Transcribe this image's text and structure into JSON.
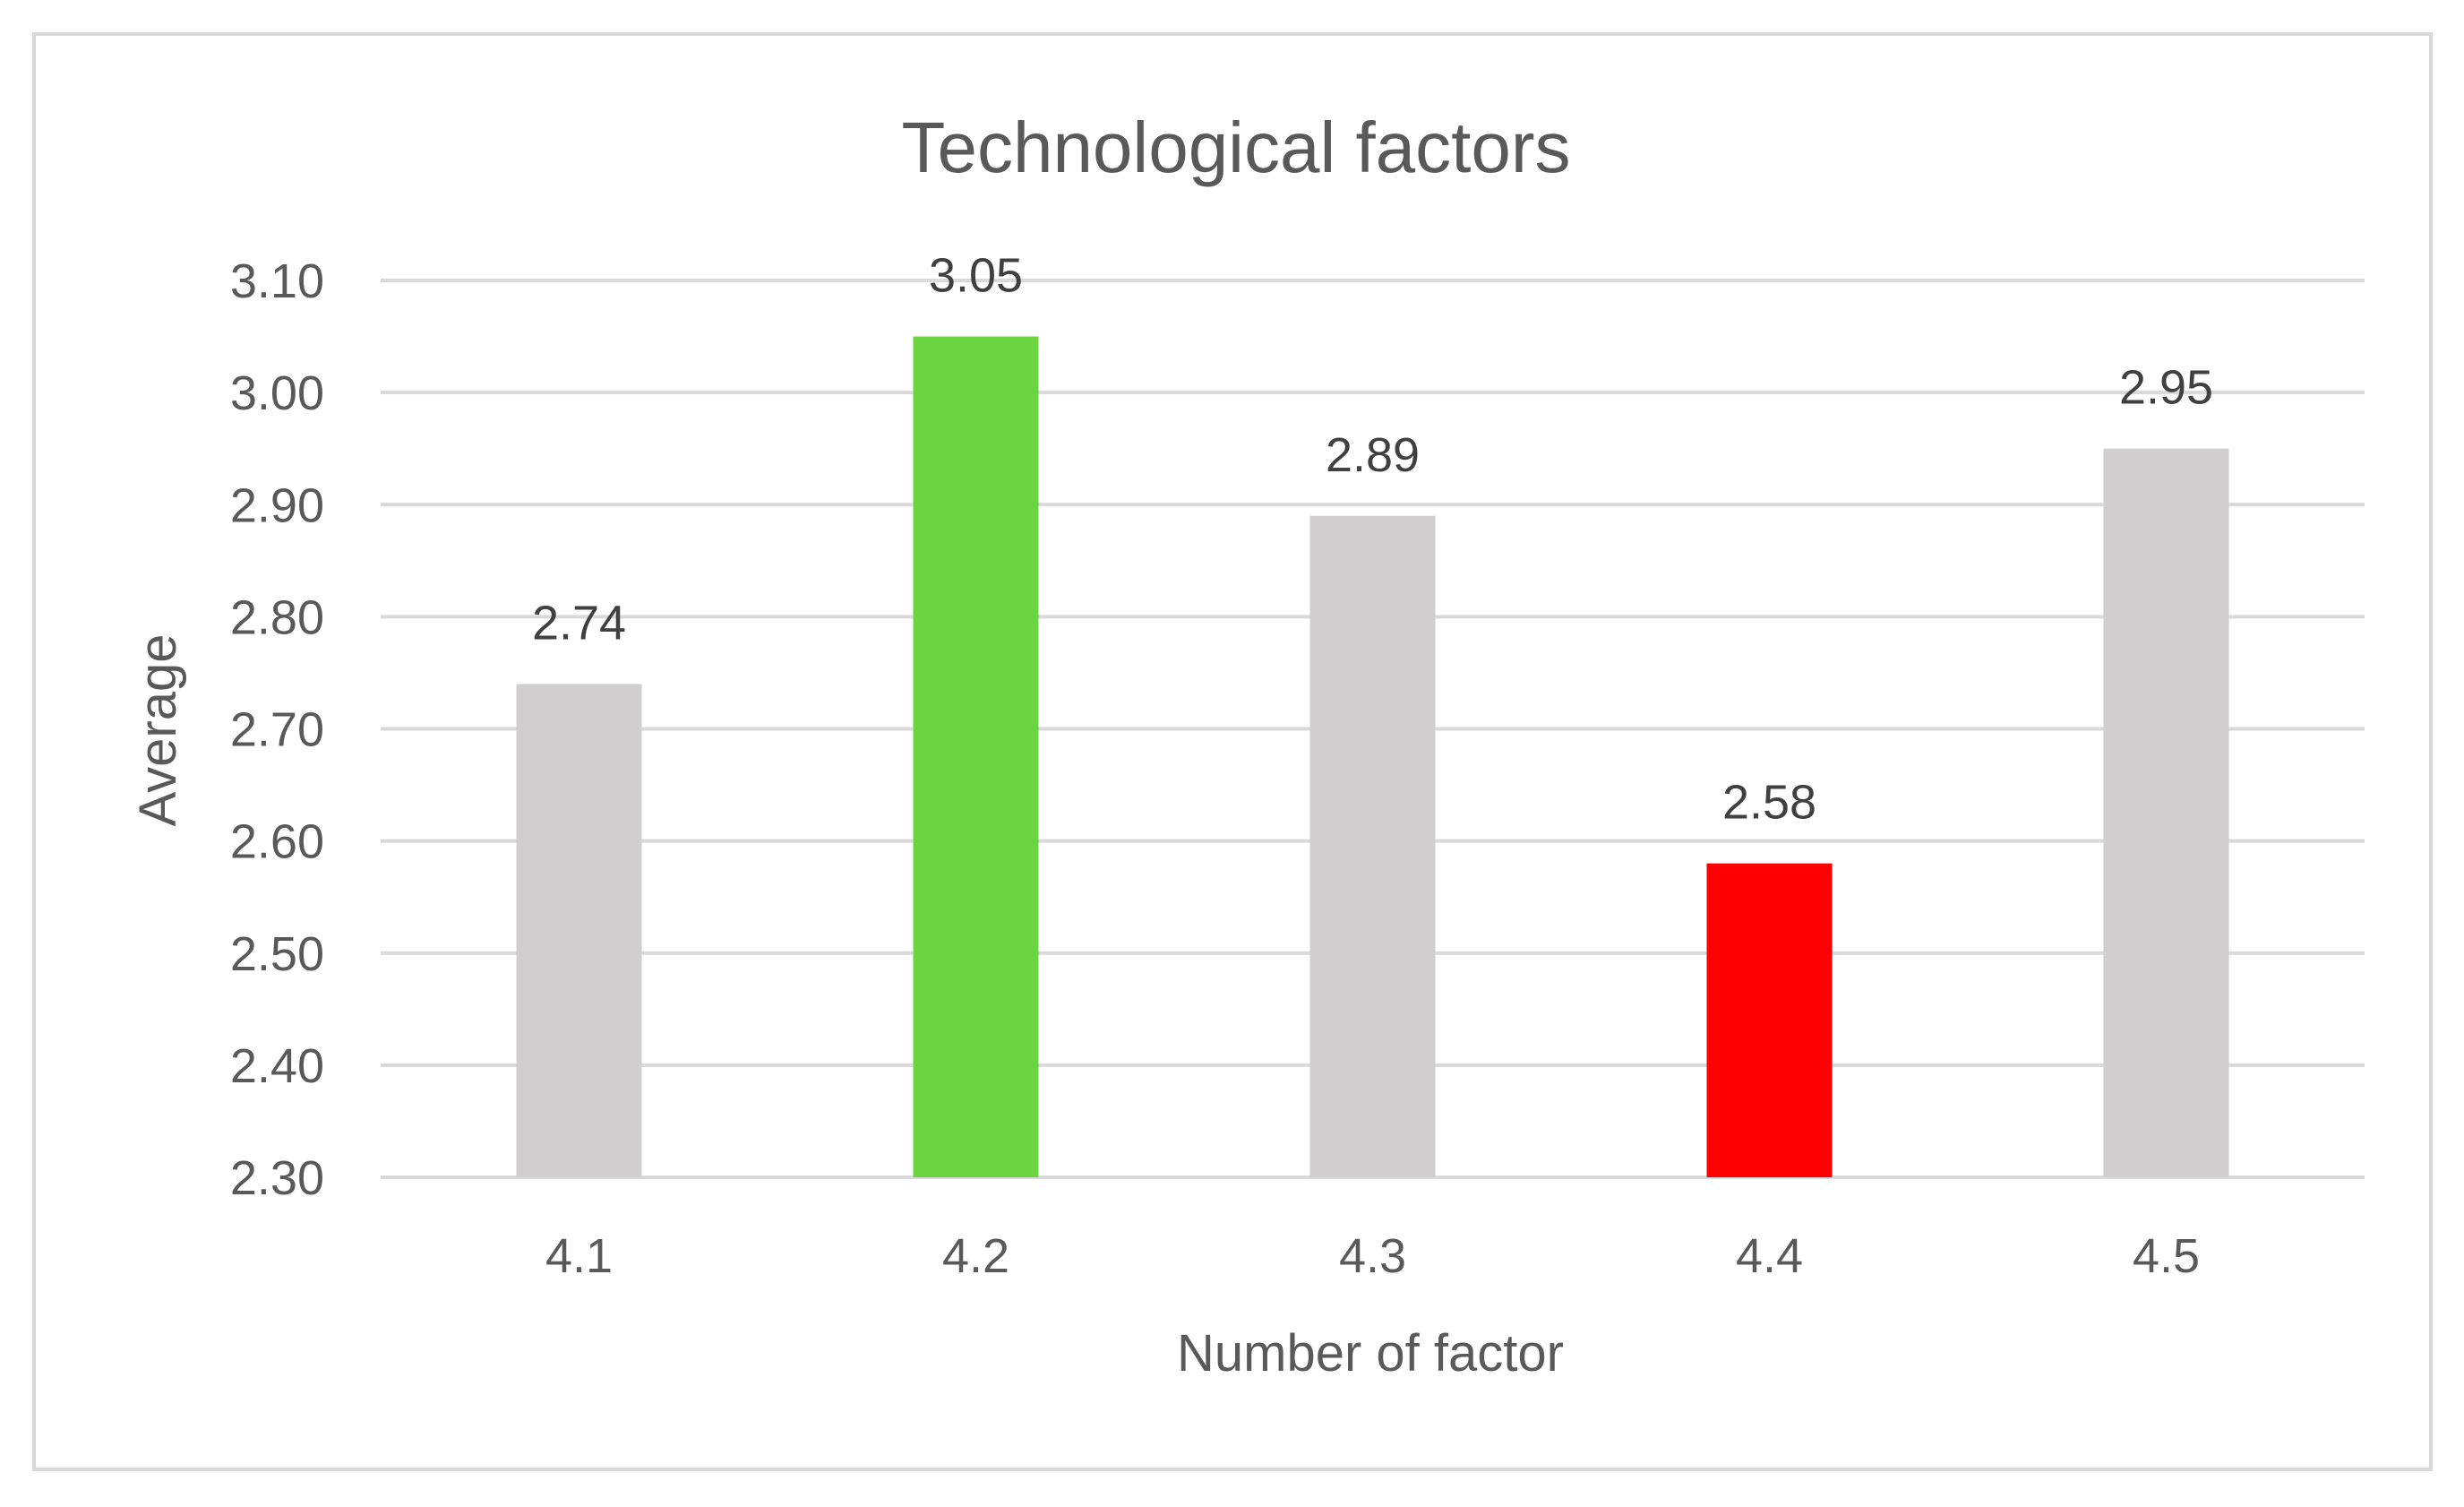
{
  "chart_data": {
    "type": "bar",
    "title": "Technological factors",
    "xlabel": "Number of factor",
    "ylabel": "Average",
    "categories": [
      "4.1",
      "4.2",
      "4.3",
      "4.4",
      "4.5"
    ],
    "values": [
      2.74,
      3.05,
      2.89,
      2.58,
      2.95
    ],
    "data_labels": [
      "2.74",
      "3.05",
      "2.89",
      "2.58",
      "2.95"
    ],
    "colors": [
      "#d0cece",
      "#6cd440",
      "#d0cece",
      "#ff0000",
      "#d0cece"
    ],
    "ylim": [
      2.3,
      3.1
    ],
    "yticks": [
      2.3,
      2.4,
      2.5,
      2.6,
      2.7,
      2.8,
      2.9,
      3.0,
      3.1
    ],
    "ytick_labels": [
      "2.30",
      "2.40",
      "2.50",
      "2.60",
      "2.70",
      "2.80",
      "2.90",
      "3.00",
      "3.10"
    ],
    "grid": true,
    "legend": "none"
  }
}
